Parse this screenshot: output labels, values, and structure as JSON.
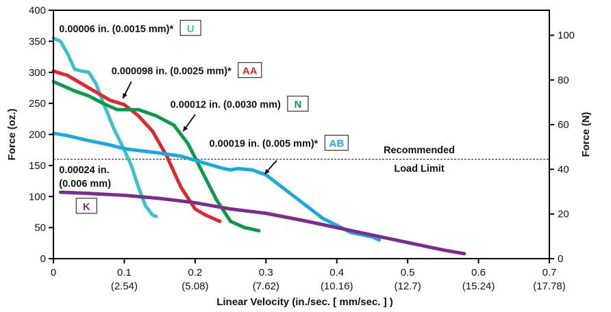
{
  "chart_data": {
    "type": "line",
    "xlabel": "Linear Velocity (in./sec. [ mm/sec. ] )",
    "ylabel_left": "Force (oz.)",
    "ylabel_right": "Force (N)",
    "xlim": [
      0,
      0.7
    ],
    "ylim_left": [
      0,
      400
    ],
    "ylim_right": [
      0,
      111.2
    ],
    "x_ticks": [
      {
        "value": 0,
        "label": "0",
        "sub": ""
      },
      {
        "value": 0.1,
        "label": "0.1",
        "sub": "(2.54)"
      },
      {
        "value": 0.2,
        "label": "0.2",
        "sub": "(5.08)"
      },
      {
        "value": 0.3,
        "label": "0.3",
        "sub": "(7.62)"
      },
      {
        "value": 0.4,
        "label": "0.4",
        "sub": "(10.16)"
      },
      {
        "value": 0.5,
        "label": "0.5",
        "sub": "(12.7)"
      },
      {
        "value": 0.6,
        "label": "0.6",
        "sub": "(15.24)"
      },
      {
        "value": 0.7,
        "label": "0.7",
        "sub": "(17.78)"
      }
    ],
    "y_ticks_left": [
      "0",
      "50",
      "100",
      "150",
      "200",
      "250",
      "300",
      "350",
      "400"
    ],
    "y_ticks_right": [
      "0",
      "20",
      "40",
      "60",
      "80",
      "100"
    ],
    "grid": false,
    "reference_line": {
      "y": 160,
      "label_line1": "Recommended",
      "label_line2": "Load Limit"
    },
    "series": [
      {
        "name": "U",
        "color": "#3cbfce",
        "x": [
          0,
          0.01,
          0.02,
          0.03,
          0.04,
          0.05,
          0.06,
          0.07,
          0.085,
          0.1,
          0.11,
          0.12,
          0.13,
          0.14,
          0.145
        ],
        "y": [
          355,
          350,
          330,
          305,
          302,
          300,
          282,
          252,
          210,
          175,
          150,
          115,
          85,
          70,
          68
        ]
      },
      {
        "name": "AA",
        "color": "#e2262c",
        "x": [
          0,
          0.02,
          0.05,
          0.08,
          0.1,
          0.12,
          0.14,
          0.16,
          0.18,
          0.2,
          0.215,
          0.235
        ],
        "y": [
          302,
          295,
          275,
          255,
          248,
          230,
          205,
          165,
          115,
          80,
          70,
          60
        ]
      },
      {
        "name": "N",
        "color": "#0a9a4a",
        "x": [
          0,
          0.03,
          0.05,
          0.07,
          0.09,
          0.12,
          0.145,
          0.17,
          0.19,
          0.21,
          0.23,
          0.25,
          0.27,
          0.29
        ],
        "y": [
          285,
          270,
          262,
          250,
          240,
          240,
          230,
          215,
          185,
          140,
          95,
          60,
          50,
          45
        ]
      },
      {
        "name": "AB",
        "color": "#1ca8e3",
        "x": [
          0,
          0.02,
          0.05,
          0.08,
          0.1,
          0.15,
          0.18,
          0.21,
          0.24,
          0.25,
          0.26,
          0.28,
          0.3,
          0.34,
          0.38,
          0.42,
          0.45,
          0.46
        ],
        "y": [
          202,
          198,
          190,
          183,
          177,
          170,
          165,
          155,
          145,
          143,
          145,
          143,
          135,
          100,
          65,
          42,
          35,
          30
        ]
      },
      {
        "name": "K",
        "color": "#7b2c8c",
        "x": [
          0.01,
          0.05,
          0.1,
          0.15,
          0.2,
          0.25,
          0.3,
          0.35,
          0.4,
          0.45,
          0.5,
          0.55,
          0.58
        ],
        "y": [
          107,
          105,
          102,
          97,
          90,
          80,
          73,
          62,
          50,
          38,
          26,
          14,
          8
        ]
      }
    ],
    "annotations": [
      {
        "text": "0.00006 in. (0.0015 mm)*",
        "tag": "U",
        "color": "#3cbfce",
        "x": 0.008,
        "y": 365
      },
      {
        "text": "0.000098 in. (0.0025 mm)*",
        "tag": "AA",
        "color": "#e2262c",
        "x": 0.082,
        "y": 297
      },
      {
        "text": "0.00012 in. (0.0030 mm)",
        "tag": "N",
        "color": "#0a9a4a",
        "x": 0.165,
        "y": 243
      },
      {
        "text": "0.00019 in. (0.005 mm)*",
        "tag": "AB",
        "color": "#1ca8e3",
        "x": 0.22,
        "y": 180
      },
      {
        "text": "0.00024 in.",
        "text2": "(0.006 mm)",
        "tag": "K",
        "color": "#7b2c8c",
        "x": 0.008,
        "y": 138
      }
    ]
  }
}
